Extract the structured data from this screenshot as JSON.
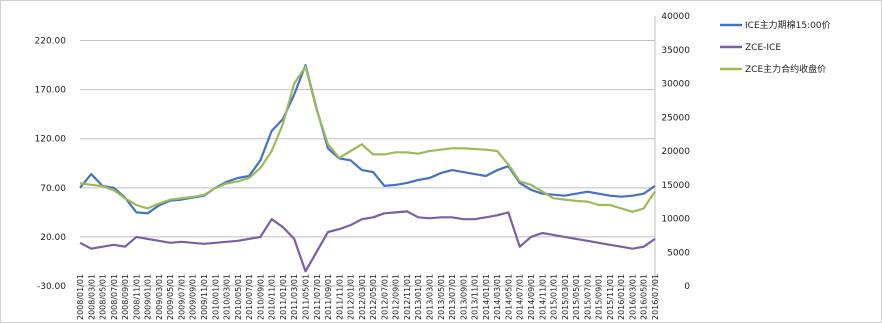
{
  "chart_data": {
    "type": "line",
    "title": "",
    "xlabel": "",
    "ylabel_left": "",
    "ylabel_right": "",
    "left_axis": {
      "range": [
        -30,
        245
      ],
      "ticks": [
        "220.00",
        "170.00",
        "120.00",
        "70.00",
        "20.00",
        "-30.00"
      ],
      "tick_values": [
        220,
        170,
        120,
        70,
        20,
        -30
      ]
    },
    "right_axis": {
      "range": [
        0,
        40000
      ],
      "ticks": [
        "40000",
        "35000",
        "30000",
        "25000",
        "20000",
        "15000",
        "10000",
        "5000",
        "0"
      ],
      "tick_values": [
        40000,
        35000,
        30000,
        25000,
        20000,
        15000,
        10000,
        5000,
        0
      ]
    },
    "grid": "horizontal",
    "legend_position": "right",
    "x": [
      "2008/01/01",
      "2008/03/01",
      "2008/05/01",
      "2008/07/01",
      "2008/09/01",
      "2008/11/01",
      "2009/01/01",
      "2009/03/01",
      "2009/05/01",
      "2009/07/01",
      "2009/09/01",
      "2009/11/01",
      "2010/01/01",
      "2010/03/01",
      "2010/05/01",
      "2010/07/01",
      "2010/09/01",
      "2010/11/01",
      "2011/01/01",
      "2011/03/01",
      "2011/05/01",
      "2011/07/01",
      "2011/09/01",
      "2011/11/01",
      "2012/01/01",
      "2012/03/01",
      "2012/05/01",
      "2012/07/01",
      "2012/09/01",
      "2012/11/01",
      "2013/01/01",
      "2013/03/01",
      "2013/05/01",
      "2013/07/01",
      "2013/09/01",
      "2013/11/01",
      "2014/01/01",
      "2014/03/01",
      "2014/05/01",
      "2014/07/01",
      "2014/09/01",
      "2014/11/01",
      "2015/01/01",
      "2015/03/01",
      "2015/05/01",
      "2015/07/01",
      "2015/09/01",
      "2015/11/01",
      "2016/01/01",
      "2016/03/01",
      "2016/05/01",
      "2016/07/01"
    ],
    "series": [
      {
        "name": "ICE主力期棉15:00价",
        "axis": "left",
        "color": "#4472c4",
        "values": [
          70,
          84,
          72,
          70,
          60,
          45,
          44,
          52,
          57,
          58,
          60,
          62,
          70,
          76,
          80,
          82,
          98,
          128,
          140,
          165,
          195,
          150,
          110,
          100,
          98,
          88,
          86,
          72,
          73,
          75,
          78,
          80,
          85,
          88,
          86,
          84,
          82,
          88,
          92,
          75,
          68,
          64,
          63,
          62,
          64,
          66,
          64,
          62,
          61,
          62,
          64,
          72
        ]
      },
      {
        "name": "ZCE-ICE",
        "axis": "left",
        "color": "#7b5ea7",
        "values": [
          14,
          8,
          10,
          12,
          10,
          20,
          18,
          16,
          14,
          15,
          14,
          13,
          14,
          15,
          16,
          18,
          20,
          38,
          30,
          18,
          -15,
          5,
          25,
          28,
          32,
          38,
          40,
          44,
          45,
          46,
          40,
          39,
          40,
          40,
          38,
          38,
          40,
          42,
          45,
          10,
          20,
          24,
          22,
          20,
          18,
          16,
          14,
          12,
          10,
          8,
          10,
          18
        ]
      },
      {
        "name": "ZCE主力合约收盘价",
        "axis": "right",
        "color": "#9bbb59",
        "values": [
          15200,
          15000,
          14800,
          14200,
          13000,
          12000,
          11500,
          12200,
          12800,
          13000,
          13200,
          13500,
          14500,
          15200,
          15500,
          16000,
          17500,
          20000,
          24000,
          30000,
          32500,
          26000,
          21000,
          19000,
          20000,
          21000,
          19500,
          19500,
          19800,
          19800,
          19600,
          20000,
          20200,
          20400,
          20400,
          20300,
          20200,
          20000,
          18000,
          15500,
          15000,
          14000,
          13000,
          12800,
          12600,
          12500,
          12000,
          12000,
          11500,
          11000,
          11500,
          14000
        ]
      }
    ]
  }
}
